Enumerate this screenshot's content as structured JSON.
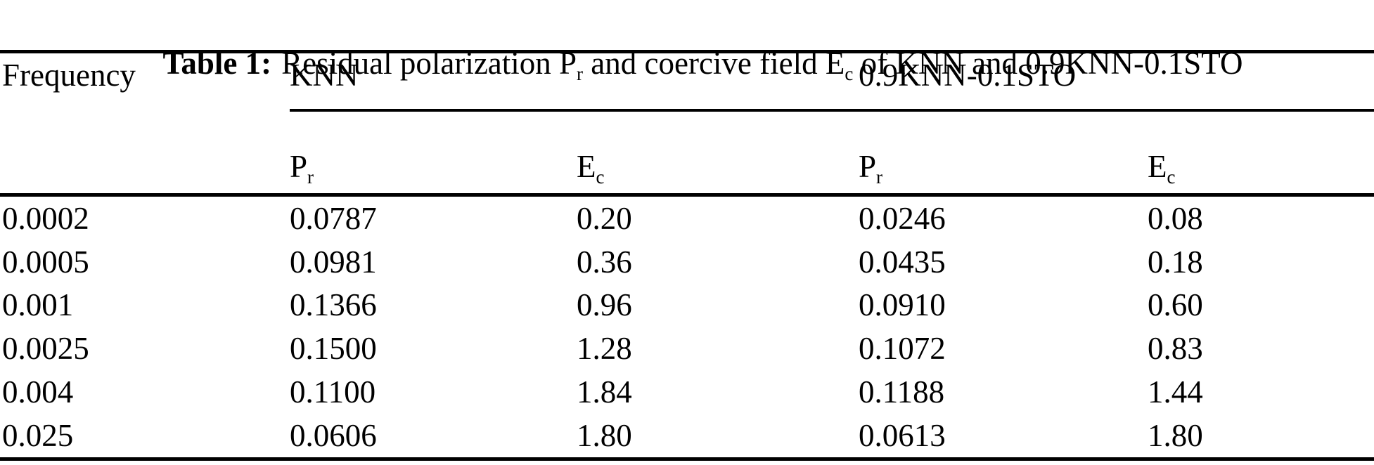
{
  "caption": {
    "label": "Table 1:",
    "part1": "Residual polarization P",
    "sub1": "r",
    "part2": " and coercive field E",
    "sub2": "c",
    "part3": " of KNN and 0.9KNN-0.1STO"
  },
  "table": {
    "row_header": "Frequency",
    "groups": [
      {
        "label": "KNN"
      },
      {
        "label": "0.9KNN-0.1STO"
      }
    ],
    "subheaders": [
      {
        "base": "P",
        "sub": "r"
      },
      {
        "base": "E",
        "sub": "c"
      },
      {
        "base": "P",
        "sub": "r"
      },
      {
        "base": "E",
        "sub": "c"
      }
    ],
    "rows": [
      {
        "frequency": "0.0002",
        "cells": [
          "0.0787",
          "0.20",
          "0.0246",
          "0.08"
        ]
      },
      {
        "frequency": "0.0005",
        "cells": [
          "0.0981",
          "0.36",
          "0.0435",
          "0.18"
        ]
      },
      {
        "frequency": "0.001",
        "cells": [
          "0.1366",
          "0.96",
          "0.0910",
          "0.60"
        ]
      },
      {
        "frequency": "0.0025",
        "cells": [
          "0.1500",
          "1.28",
          "0.1072",
          "0.83"
        ]
      },
      {
        "frequency": "0.004",
        "cells": [
          "0.1100",
          "1.84",
          "0.1188",
          "1.44"
        ]
      },
      {
        "frequency": "0.025",
        "cells": [
          "0.0606",
          "1.80",
          "0.0613",
          "1.80"
        ]
      }
    ]
  },
  "colors": {
    "text": "#000000",
    "background": "#ffffff",
    "rule": "#000000"
  }
}
